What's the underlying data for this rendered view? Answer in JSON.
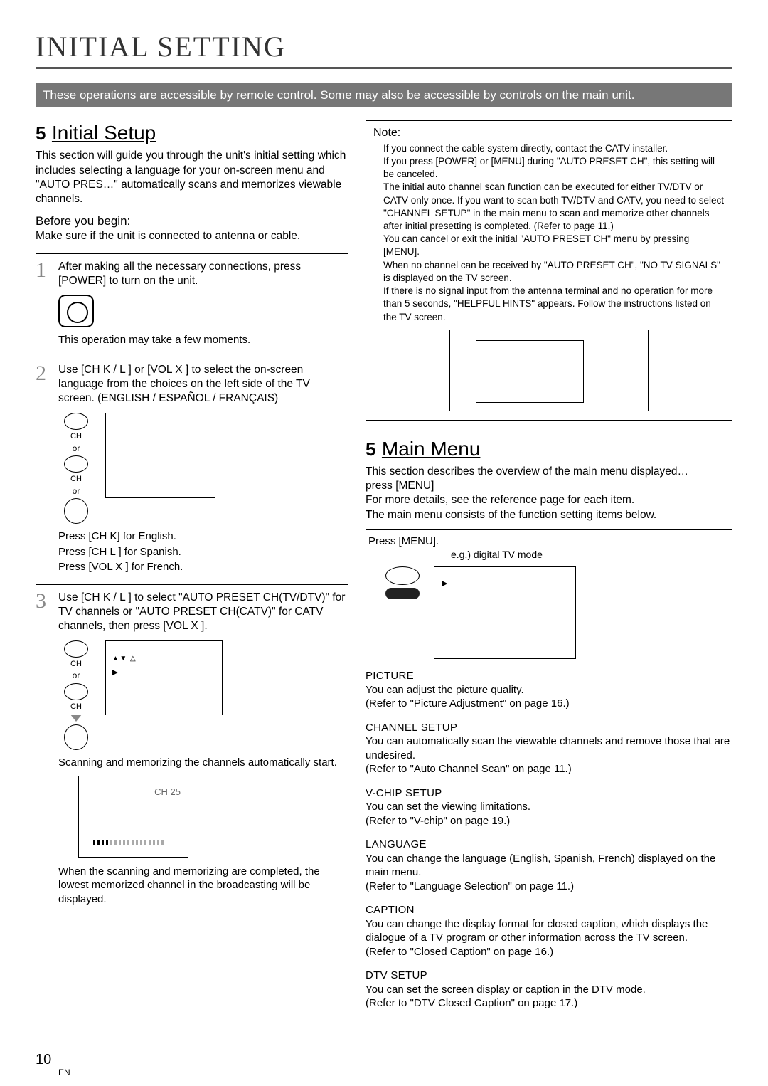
{
  "page": {
    "title_html": "I<span class='big'>NITIAL</span> S<span class='big'>ETTING</span>",
    "title_plain": "INITIAL SETTING",
    "banner": "These operations are accessible by remote control. Some may also be accessible by controls on the main unit.",
    "number": "10",
    "lang": "EN"
  },
  "initial_setup": {
    "num": "5",
    "title": "Initial Setup",
    "intro": "This section will guide you through the unit's initial setting which includes selecting a language for your on-screen menu and \"AUTO PRES…\" automatically scans and memorizes viewable channels.",
    "before_h": "Before you begin:",
    "before_t": "Make sure if the unit is connected to antenna or cable.",
    "step1": "After making all the necessary connections, press [POWER] to turn on the unit.",
    "step1_note": "This operation may take a few moments.",
    "step2": "Use [CH K / L ] or [VOL X ] to select the on-screen language from the choices on the left side of the TV screen. (ENGLISH / ESPAÑOL / FRANÇAIS)",
    "step2_eng": "Press [CH K] for English.",
    "step2_spa": "Press [CH L ] for Spanish.",
    "step2_fre": "Press [VOL X ] for French.",
    "step3": "Use [CH K / L ] to select \"AUTO PRESET CH(TV/DTV)\" for TV channels or \"AUTO PRESET CH(CATV)\" for CATV channels, then press [VOL X ].",
    "step3_scan": "Scanning and memorizing the channels automatically start.",
    "step3_done": "When the scanning and memorizing are completed, the lowest memorized channel in the broadcasting will be displayed.",
    "ch_label": "CH",
    "or": "or",
    "ch25": "CH  25",
    "arrow_line1": "▲▼    △",
    "arrow_line2": "▶"
  },
  "note": {
    "title": "Note:",
    "l1": "If you connect the cable system directly, contact the CATV installer.",
    "l2": "If you press [POWER] or [MENU] during \"AUTO PRESET CH\", this setting will be canceled.",
    "l3": "The initial auto channel scan function can be executed for either TV/DTV or CATV only once. If you want to scan both TV/DTV and CATV, you need to select \"CHANNEL SETUP\" in the main menu to scan and memorize other channels after initial presetting is completed. (Refer to page 11.)",
    "l4": "You can cancel or exit the initial \"AUTO PRESET CH\" menu by pressing [MENU].",
    "l5": "When no channel can be received by \"AUTO PRESET CH\", \"NO TV SIGNALS\" is displayed on the TV screen.",
    "l6": "If there is no signal input from the antenna terminal and no operation for more than 5 seconds, \"HELPFUL HINTS\" appears. Follow the instructions listed on the TV screen."
  },
  "main_menu": {
    "num": "5",
    "title": "Main Menu",
    "intro1": "This section describes the overview of the main menu displayed…",
    "intro2": "press [MENU]",
    "intro3": "For more details, see the reference page for each item.",
    "intro4": "The main menu consists of the function setting items below.",
    "press": "Press [MENU].",
    "eg": "e.g.) digital TV mode",
    "screen_mark": "▶",
    "items": [
      {
        "t": "PICTURE",
        "d": "You can adjust the picture quality.",
        "r": "(Refer to \"Picture Adjustment\" on page 16.)"
      },
      {
        "t": "CHANNEL SETUP",
        "d": "You can automatically scan the viewable channels and remove those that are undesired.",
        "r": "(Refer to \"Auto Channel Scan\" on page 11.)"
      },
      {
        "t": "V-CHIP SETUP",
        "d": "You can set the viewing limitations.",
        "r": "(Refer to \"V-chip\" on page 19.)"
      },
      {
        "t": "LANGUAGE",
        "d": "You can change the language (English, Spanish, French) displayed on the main menu.",
        "r": "(Refer to \"Language Selection\" on page 11.)"
      },
      {
        "t": "CAPTION",
        "d": "You can change the display format for closed caption, which displays the dialogue of a TV program or other information across the TV screen.",
        "r": "(Refer to \"Closed Caption\" on page 16.)"
      },
      {
        "t": "DTV SETUP",
        "d": "You can set the screen display or caption in the DTV mode.",
        "r": "(Refer to \"DTV Closed Caption\" on page 17.)"
      }
    ]
  }
}
